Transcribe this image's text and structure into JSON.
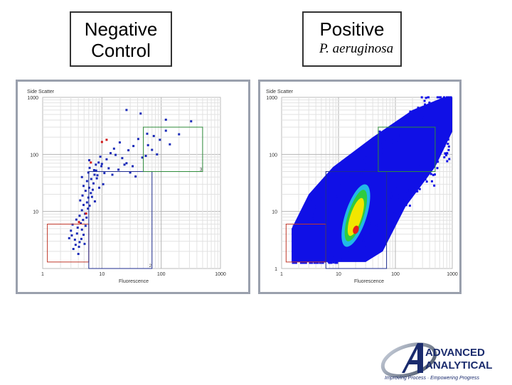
{
  "negative_title": {
    "line1": "Negative",
    "line2": "Control"
  },
  "positive_title": {
    "line1": "Positive",
    "line2": "P. aeruginosa"
  },
  "chart_data": [
    {
      "type": "scatter",
      "title": "",
      "ylabel": "Side Scatter",
      "xlabel": "Fluorescence",
      "xscale": "log",
      "yscale": "log",
      "xlim": [
        1,
        1000
      ],
      "ylim": [
        1,
        1000
      ],
      "xticks": [
        "1",
        "10",
        "100",
        "1000"
      ],
      "yticks": [
        "10",
        "100",
        "1000"
      ],
      "grid": true,
      "gates": [
        {
          "label": "",
          "color": "#c0392b",
          "x": [
            1.2,
            6
          ],
          "y": [
            1.3,
            6
          ]
        },
        {
          "label": "",
          "color": "#1f2e8f",
          "x": [
            6,
            70
          ],
          "y": [
            1,
            50
          ]
        },
        {
          "label": "",
          "color": "#2e8b3a",
          "x": [
            50,
            500
          ],
          "y": [
            50,
            300
          ]
        }
      ],
      "gate_labels": [
        "2",
        "3"
      ],
      "points": [
        [
          3.5,
          3.2
        ],
        [
          3.6,
          2.6
        ],
        [
          4.2,
          2.9
        ],
        [
          3.1,
          3.8
        ],
        [
          4.5,
          3.3
        ],
        [
          3.8,
          4.1
        ],
        [
          4.9,
          3.9
        ],
        [
          3.3,
          2.2
        ],
        [
          4.1,
          2.4
        ],
        [
          5.1,
          2.7
        ],
        [
          3.9,
          5.2
        ],
        [
          4.6,
          4.8
        ],
        [
          5.3,
          5.6
        ],
        [
          4.4,
          6.2
        ],
        [
          3.2,
          5.9
        ],
        [
          4.8,
          7.1
        ],
        [
          5.5,
          7.8
        ],
        [
          3.7,
          7.2
        ],
        [
          4.2,
          8.4
        ],
        [
          5.2,
          9.1
        ],
        [
          4.6,
          10.5
        ],
        [
          5.8,
          11.2
        ],
        [
          4.9,
          13.0
        ],
        [
          5.6,
          14.4
        ],
        [
          6.2,
          12.6
        ],
        [
          4.3,
          15.6
        ],
        [
          5.9,
          17.5
        ],
        [
          4.7,
          19.0
        ],
        [
          6.5,
          21.0
        ],
        [
          5.3,
          23.0
        ],
        [
          6.1,
          26.0
        ],
        [
          4.9,
          28.0
        ],
        [
          7.2,
          31.0
        ],
        [
          5.6,
          34.0
        ],
        [
          6.6,
          37.0
        ],
        [
          4.6,
          40.0
        ],
        [
          8.4,
          43.0
        ],
        [
          5.9,
          48.0
        ],
        [
          7.4,
          53.0
        ],
        [
          6.2,
          58.0
        ],
        [
          9.8,
          62.0
        ],
        [
          7.9,
          66.0
        ],
        [
          8.8,
          72.0
        ],
        [
          6.1,
          79.0
        ],
        [
          12.0,
          82.0
        ],
        [
          9.4,
          91.0
        ],
        [
          14.0,
          105.0
        ],
        [
          17.0,
          98.0
        ],
        [
          22.0,
          86.0
        ],
        [
          28.0,
          118.0
        ],
        [
          16.0,
          126.0
        ],
        [
          34.0,
          140.0
        ],
        [
          20.0,
          162.0
        ],
        [
          41.0,
          186.0
        ],
        [
          26.0,
          70.0
        ],
        [
          33.0,
          62.0
        ],
        [
          48.0,
          88.0
        ],
        [
          55.0,
          94.0
        ],
        [
          13.0,
          57.0
        ],
        [
          11.0,
          47.0
        ],
        [
          8.2,
          38.0
        ],
        [
          10.5,
          30.0
        ],
        [
          7.0,
          24.0
        ],
        [
          3.0,
          4.6
        ],
        [
          2.8,
          3.4
        ],
        [
          4.0,
          1.8
        ],
        [
          6.8,
          18.0
        ],
        [
          7.6,
          15.0
        ],
        [
          9.0,
          26.0
        ],
        [
          15.0,
          44.0
        ],
        [
          19.0,
          54.0
        ],
        [
          24.0,
          66.0
        ],
        [
          30.0,
          48.0
        ],
        [
          37.0,
          41.0
        ],
        [
          58.0,
          230.0
        ],
        [
          75.0,
          210.0
        ],
        [
          95.0,
          180.0
        ],
        [
          120.0,
          260.0
        ],
        [
          200.0,
          225.0
        ],
        [
          320.0,
          380.0
        ],
        [
          45.0,
          520.0
        ],
        [
          120.0,
          405.0
        ],
        [
          60.0,
          145.0
        ],
        [
          70.0,
          120.0
        ],
        [
          85.0,
          100.0
        ],
        [
          140.0,
          150.0
        ],
        [
          26.0,
          600.0
        ],
        [
          8.0,
          52.0
        ],
        [
          10.0,
          68.0
        ],
        [
          7.5,
          44.0
        ]
      ],
      "highlight_points": [
        [
          12.0,
          180.0
        ],
        [
          10.0,
          165.0
        ],
        [
          6.5,
          72.0
        ],
        [
          5.4,
          9.2
        ],
        [
          4.1,
          6.5
        ]
      ]
    },
    {
      "type": "heatmap",
      "title": "",
      "ylabel": "Side Scatter",
      "xlabel": "Fluorescence",
      "xscale": "log",
      "yscale": "log",
      "xlim": [
        1,
        1000
      ],
      "ylim": [
        1,
        1000
      ],
      "xticks": [
        "1",
        "10",
        "100",
        "1000"
      ],
      "yticks": [
        "1",
        "10",
        "100",
        "1000"
      ],
      "grid": true,
      "density_colors": [
        "#1010e6",
        "#21b8e8",
        "#2ecc40",
        "#f2e600",
        "#e51b1b"
      ],
      "gates": [
        {
          "label": "",
          "color": "#c0392b",
          "x": [
            1.2,
            6
          ],
          "y": [
            1.3,
            6
          ]
        },
        {
          "label": "",
          "color": "#1f2e8f",
          "x": [
            6,
            70
          ],
          "y": [
            1,
            50
          ]
        },
        {
          "label": "",
          "color": "#2e8b3a",
          "x": [
            50,
            500
          ],
          "y": [
            50,
            300
          ]
        }
      ],
      "population": {
        "x_range": [
          1.5,
          1000
        ],
        "y_range": [
          1.3,
          1000
        ],
        "peak": [
          18.0,
          6.0
        ]
      }
    }
  ],
  "logo": {
    "line1": "ADVANCED",
    "line2": "ANALYTICAL",
    "tagline": "Improving Process · Empowering Progress",
    "color": "#1a2b6d"
  }
}
